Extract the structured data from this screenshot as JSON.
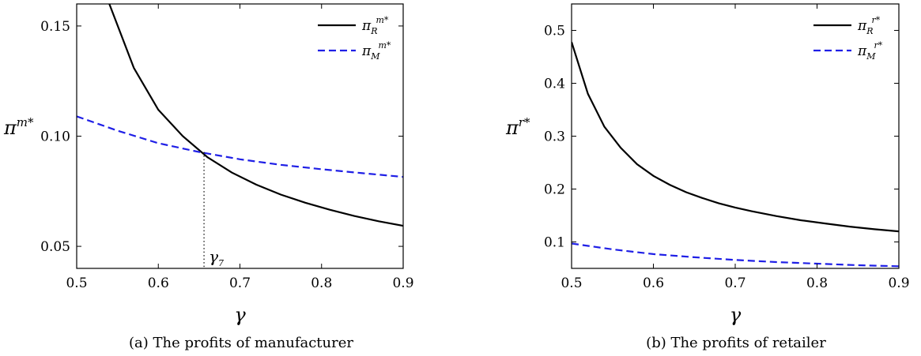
{
  "chart_data": [
    {
      "type": "line",
      "caption": "(a)  The profits of manufacturer",
      "xlabel": "γ",
      "ylabel_base": "π",
      "ylabel_sup": "m*",
      "xlim": [
        0.5,
        0.9
      ],
      "ylim": [
        0.04,
        0.16
      ],
      "xticks": [
        0.5,
        0.6,
        0.7,
        0.8,
        0.9
      ],
      "xtick_labels": [
        "0.5",
        "0.6",
        "0.7",
        "0.8",
        "0.9"
      ],
      "yticks": [
        0.05,
        0.1,
        0.15
      ],
      "ytick_labels": [
        "0.05",
        "0.10",
        "0.15"
      ],
      "legend_position": "top-right",
      "series": [
        {
          "legend_base": "π",
          "legend_sub": "R",
          "legend_sup": "m*",
          "color": "#000000",
          "dash": "solid",
          "x": [
            0.54,
            0.57,
            0.6,
            0.63,
            0.66,
            0.69,
            0.72,
            0.75,
            0.78,
            0.81,
            0.84,
            0.87,
            0.9
          ],
          "y": [
            0.16,
            0.131,
            0.112,
            0.1,
            0.0905,
            0.0835,
            0.078,
            0.0735,
            0.0698,
            0.0666,
            0.0638,
            0.0614,
            0.0593
          ]
        },
        {
          "legend_base": "π",
          "legend_sub": "M",
          "legend_sup": "m*",
          "color": "#1f1fe6",
          "dash": "dashed",
          "x": [
            0.5,
            0.55,
            0.6,
            0.65,
            0.7,
            0.75,
            0.8,
            0.85,
            0.9
          ],
          "y": [
            0.109,
            0.1025,
            0.0968,
            0.0928,
            0.0895,
            0.087,
            0.085,
            0.0832,
            0.0815
          ]
        }
      ],
      "annotation": {
        "label_base": "γ",
        "label_sub": "7",
        "x": 0.656,
        "y": 0.0928
      }
    },
    {
      "type": "line",
      "caption": "(b)  The profits of retailer",
      "xlabel": "γ",
      "ylabel_base": "π",
      "ylabel_sup": "r*",
      "xlim": [
        0.5,
        0.9
      ],
      "ylim": [
        0.05,
        0.55
      ],
      "xticks": [
        0.5,
        0.6,
        0.7,
        0.8,
        0.9
      ],
      "xtick_labels": [
        "0.5",
        "0.6",
        "0.7",
        "0.8",
        "0.9"
      ],
      "yticks": [
        0.1,
        0.2,
        0.3,
        0.4,
        0.5
      ],
      "ytick_labels": [
        "0.1",
        "0.2",
        "0.3",
        "0.4",
        "0.5"
      ],
      "legend_position": "top-right",
      "series": [
        {
          "legend_base": "π",
          "legend_sub": "R",
          "legend_sup": "r*",
          "color": "#000000",
          "dash": "solid",
          "x": [
            0.5,
            0.52,
            0.54,
            0.56,
            0.58,
            0.6,
            0.62,
            0.64,
            0.66,
            0.68,
            0.7,
            0.72,
            0.75,
            0.78,
            0.81,
            0.84,
            0.87,
            0.9
          ],
          "y": [
            0.478,
            0.38,
            0.318,
            0.278,
            0.247,
            0.225,
            0.208,
            0.194,
            0.183,
            0.173,
            0.165,
            0.158,
            0.149,
            0.141,
            0.135,
            0.129,
            0.124,
            0.12
          ]
        },
        {
          "legend_base": "π",
          "legend_sub": "M",
          "legend_sup": "r*",
          "color": "#1f1fe6",
          "dash": "dashed",
          "x": [
            0.5,
            0.55,
            0.6,
            0.65,
            0.7,
            0.75,
            0.8,
            0.85,
            0.9
          ],
          "y": [
            0.097,
            0.086,
            0.077,
            0.071,
            0.066,
            0.062,
            0.059,
            0.056,
            0.054
          ]
        }
      ]
    }
  ]
}
